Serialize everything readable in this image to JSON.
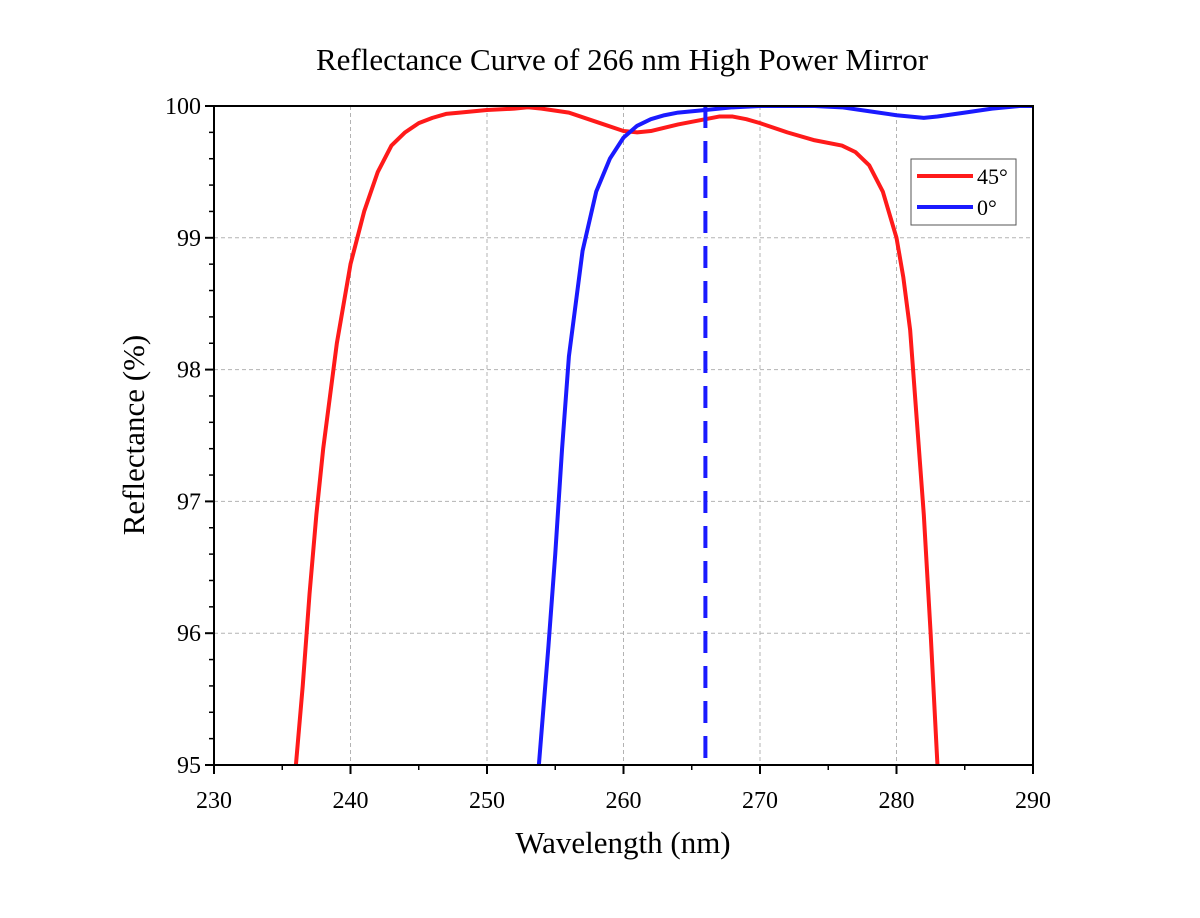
{
  "chart_data": {
    "type": "line",
    "title": "Reflectance Curve of 266 nm High Power Mirror",
    "xlabel": "Wavelength (nm)",
    "ylabel": "Reflectance (%)",
    "xlim": [
      230,
      290
    ],
    "ylim": [
      95,
      100
    ],
    "xticks": [
      "230",
      "240",
      "250",
      "260",
      "270",
      "280",
      "290"
    ],
    "yticks": [
      "95",
      "96",
      "97",
      "98",
      "99",
      "100"
    ],
    "grid": true,
    "legend_position": "top-right",
    "reference_line": {
      "x": 266,
      "style": "dashed",
      "color": "#1a1aff"
    },
    "series": [
      {
        "name": "45°",
        "color": "#ff1a1a",
        "points": [
          [
            236.0,
            95.0
          ],
          [
            236.5,
            95.6
          ],
          [
            237.0,
            96.3
          ],
          [
            237.5,
            96.9
          ],
          [
            238.0,
            97.4
          ],
          [
            238.5,
            97.8
          ],
          [
            239.0,
            98.2
          ],
          [
            240.0,
            98.8
          ],
          [
            241.0,
            99.2
          ],
          [
            242.0,
            99.5
          ],
          [
            243.0,
            99.7
          ],
          [
            244.0,
            99.8
          ],
          [
            245.0,
            99.87
          ],
          [
            246.0,
            99.91
          ],
          [
            247.0,
            99.94
          ],
          [
            248.0,
            99.95
          ],
          [
            250.0,
            99.97
          ],
          [
            252.0,
            99.98
          ],
          [
            253.0,
            99.99
          ],
          [
            254.0,
            99.98
          ],
          [
            256.0,
            99.95
          ],
          [
            258.0,
            99.88
          ],
          [
            260.0,
            99.81
          ],
          [
            261.0,
            99.8
          ],
          [
            262.0,
            99.81
          ],
          [
            264.0,
            99.86
          ],
          [
            266.0,
            99.9
          ],
          [
            267.0,
            99.92
          ],
          [
            268.0,
            99.92
          ],
          [
            269.0,
            99.9
          ],
          [
            270.0,
            99.87
          ],
          [
            272.0,
            99.8
          ],
          [
            274.0,
            99.74
          ],
          [
            276.0,
            99.7
          ],
          [
            277.0,
            99.65
          ],
          [
            278.0,
            99.55
          ],
          [
            279.0,
            99.35
          ],
          [
            280.0,
            99.0
          ],
          [
            280.5,
            98.7
          ],
          [
            281.0,
            98.3
          ],
          [
            281.5,
            97.6
          ],
          [
            282.0,
            96.9
          ],
          [
            282.5,
            96.0
          ],
          [
            283.0,
            95.0
          ]
        ]
      },
      {
        "name": "0°",
        "color": "#1a1aff",
        "points": [
          [
            253.8,
            95.0
          ],
          [
            254.5,
            95.9
          ],
          [
            255.0,
            96.6
          ],
          [
            255.5,
            97.4
          ],
          [
            256.0,
            98.1
          ],
          [
            257.0,
            98.9
          ],
          [
            258.0,
            99.35
          ],
          [
            259.0,
            99.6
          ],
          [
            260.0,
            99.76
          ],
          [
            261.0,
            99.85
          ],
          [
            262.0,
            99.9
          ],
          [
            263.0,
            99.93
          ],
          [
            264.0,
            99.95
          ],
          [
            266.0,
            99.97
          ],
          [
            268.0,
            99.99
          ],
          [
            270.0,
            100.0
          ],
          [
            272.0,
            100.0
          ],
          [
            274.0,
            100.0
          ],
          [
            276.0,
            99.99
          ],
          [
            278.0,
            99.96
          ],
          [
            280.0,
            99.93
          ],
          [
            282.0,
            99.91
          ],
          [
            283.0,
            99.92
          ],
          [
            285.0,
            99.95
          ],
          [
            287.0,
            99.98
          ],
          [
            289.0,
            100.0
          ],
          [
            290.0,
            100.0
          ]
        ]
      }
    ]
  }
}
